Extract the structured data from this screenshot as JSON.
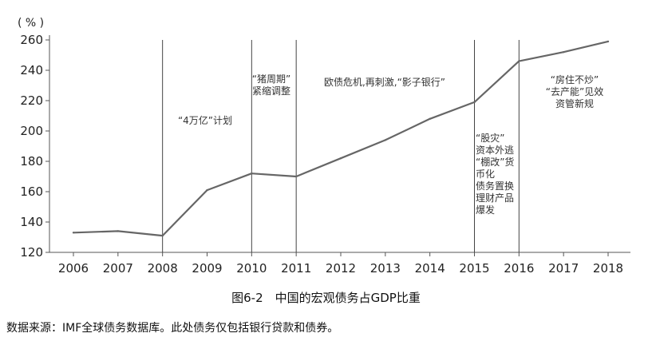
{
  "chart_data": {
    "type": "line",
    "ylabel": "( % )",
    "ylim": [
      120,
      260
    ],
    "yticks": [
      120,
      140,
      160,
      180,
      200,
      220,
      240,
      260
    ],
    "x": [
      "2006",
      "2007",
      "2008",
      "2009",
      "2010",
      "2011",
      "2012",
      "2013",
      "2014",
      "2015",
      "2016",
      "2017",
      "2018"
    ],
    "series": [
      {
        "values": [
          133,
          134,
          131,
          161,
          172,
          170,
          182,
          194,
          208,
          219,
          246,
          252,
          259
        ]
      }
    ],
    "vertical_lines": [
      "2008",
      "2010",
      "2011",
      "2015",
      "2016"
    ],
    "annotations": [
      {
        "lines": [
          "“4万亿”计划"
        ]
      },
      {
        "lines": [
          "“猪周期”",
          "紧缩调整"
        ]
      },
      {
        "lines": [
          "欧债危机,再刺激,“影子银行”"
        ]
      },
      {
        "lines": [
          "“股灾”",
          "资本外逃",
          "“棚改”货",
          "币化",
          "债务置换",
          "理财产品",
          "爆发"
        ]
      },
      {
        "lines": [
          "“房住不炒”",
          "“去产能”见效",
          "资管新规"
        ]
      }
    ],
    "line_color": "#666666"
  },
  "caption": "图6-2　中国的宏观债务占GDP比重",
  "source": "数据来源：IMF全球债务数据库。此处债务仅包括银行贷款和债券。"
}
